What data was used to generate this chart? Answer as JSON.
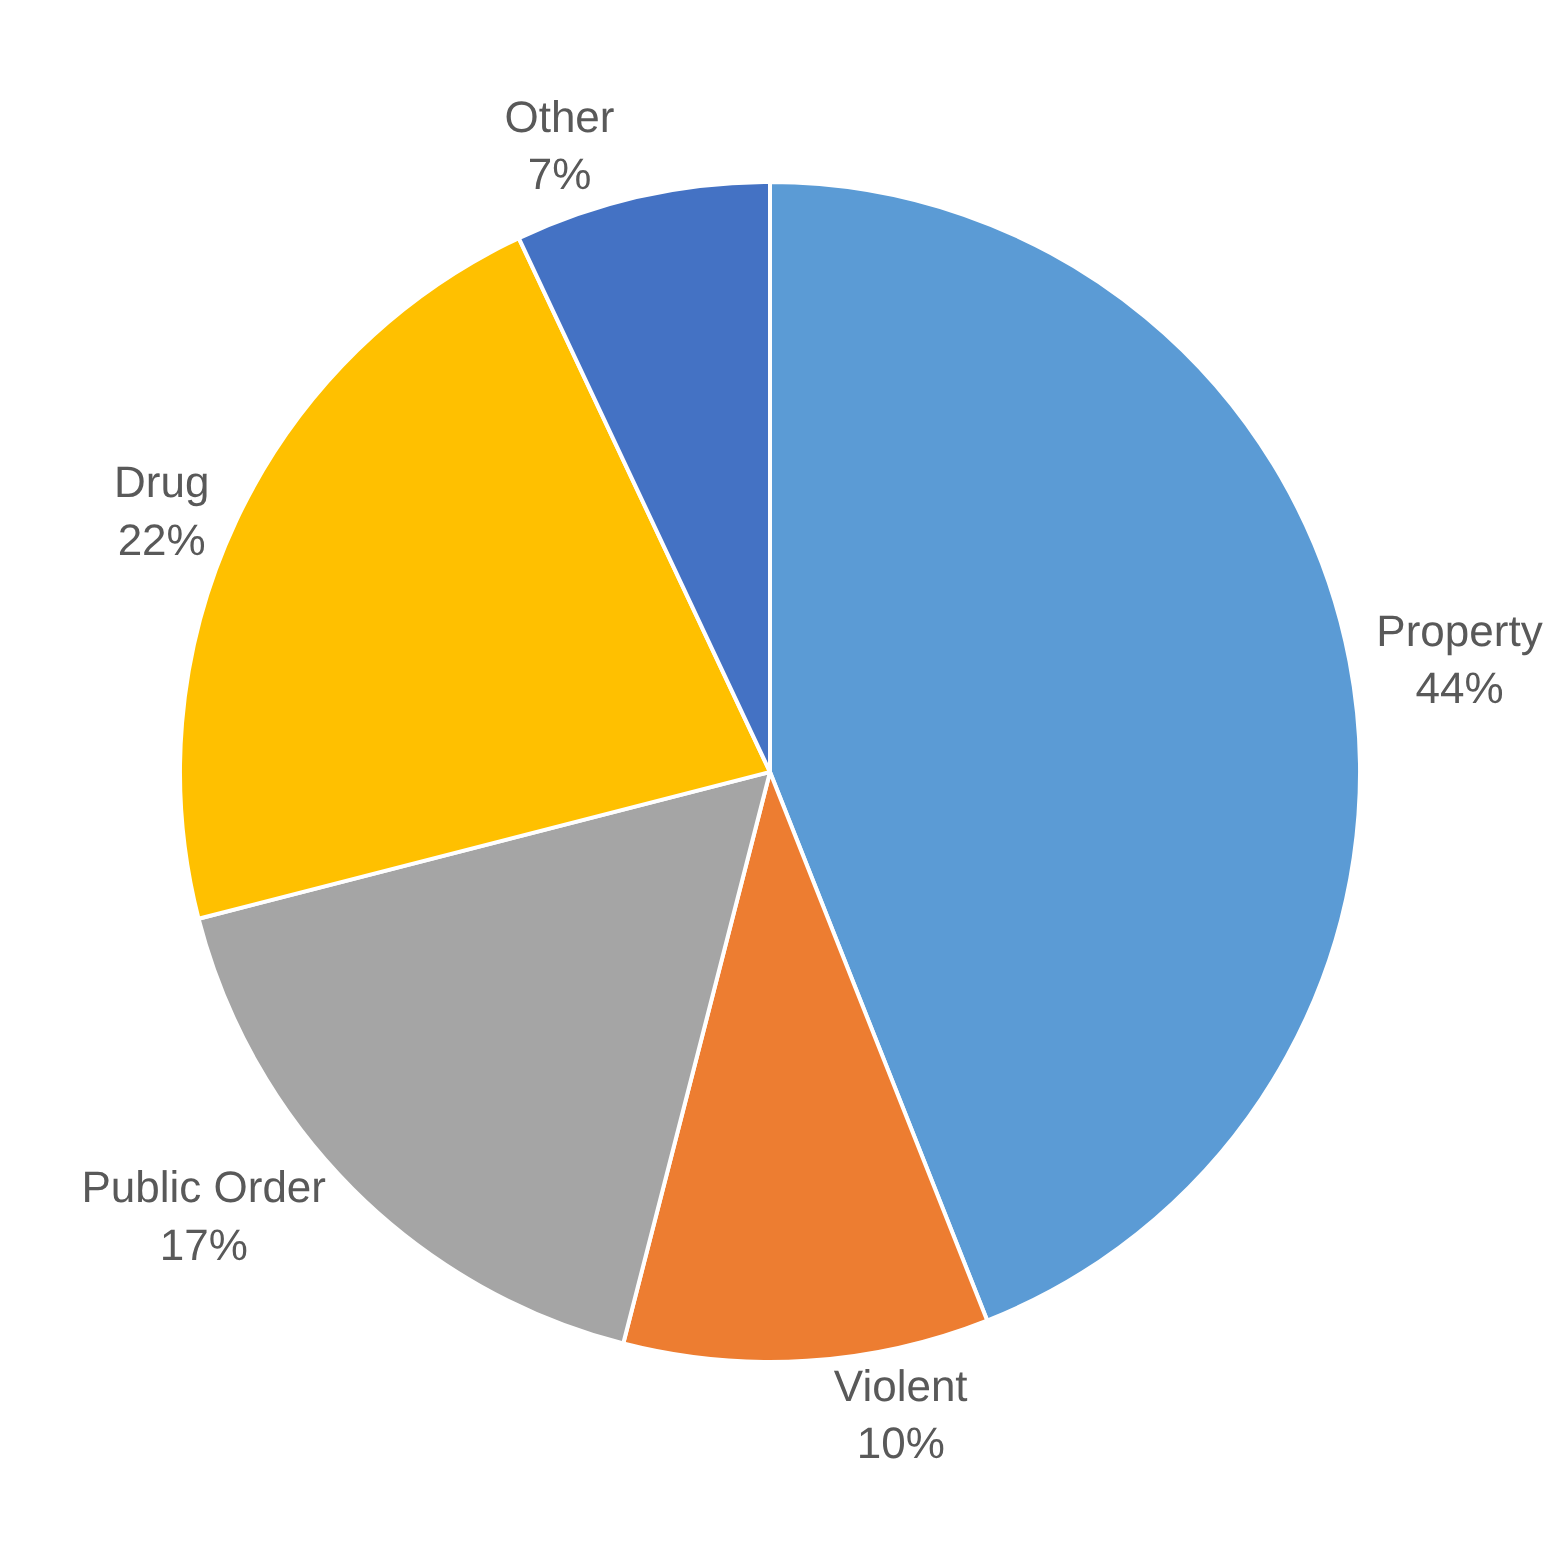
{
  "chart_data": {
    "type": "pie",
    "categories": [
      "Property",
      "Violent",
      "Public Order",
      "Drug",
      "Other"
    ],
    "values": [
      44,
      10,
      17,
      22,
      7
    ],
    "value_labels": [
      "44%",
      "10%",
      "17%",
      "22%",
      "7%"
    ],
    "colors": [
      "#5b9bd5",
      "#ed7d31",
      "#a5a5a5",
      "#ffc000",
      "#4472c4"
    ],
    "legend": false
  }
}
